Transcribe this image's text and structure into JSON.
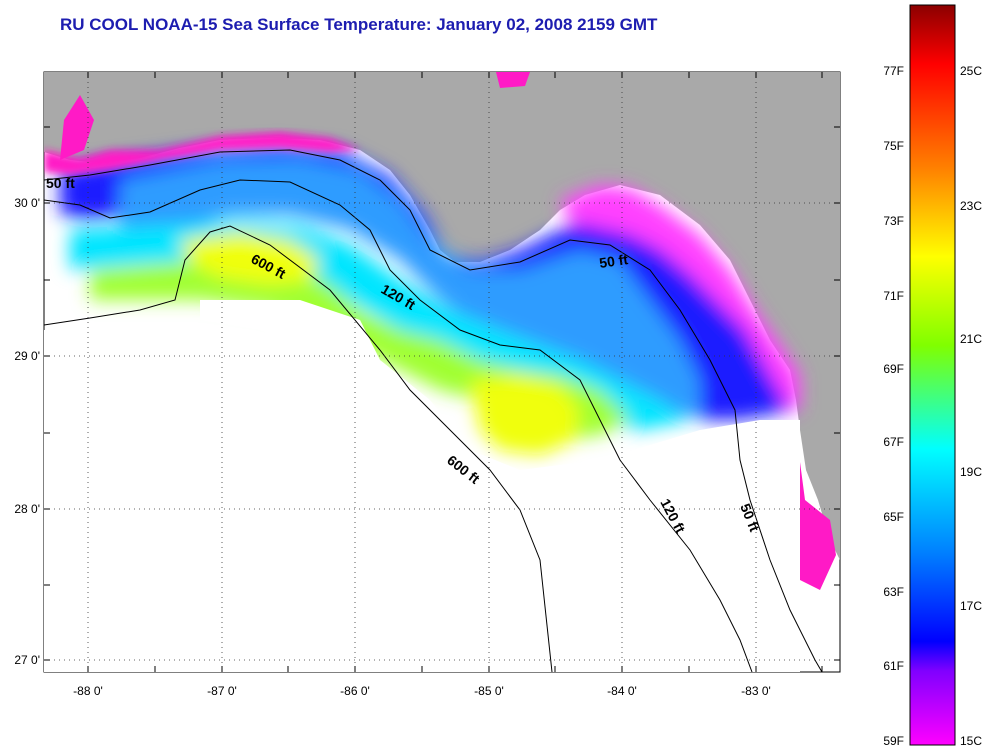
{
  "title": "RU COOL  NOAA-15  Sea Surface Temperature:  January 02, 2008 2159 GMT",
  "map": {
    "x_ticks": [
      "-88 0'",
      "-87 0'",
      "-86 0'",
      "-85 0'",
      "-84 0'",
      "-83 0'"
    ],
    "y_ticks": [
      "30 0'",
      "29 0'",
      "28 0'",
      "27 0'"
    ],
    "contour_labels": [
      "600 ft",
      "120 ft",
      "50 ft",
      "50 ft",
      "600 ft",
      "120 ft",
      "50 ft"
    ]
  },
  "colorbar": {
    "f_labels": [
      "77F",
      "75F",
      "73F",
      "71F",
      "69F",
      "67F",
      "65F",
      "63F",
      "61F",
      "59F"
    ],
    "c_labels": [
      "25C",
      "23C",
      "21C",
      "19C",
      "17C",
      "15C"
    ],
    "colors": [
      "#8b0000",
      "#ff0000",
      "#ff8000",
      "#ffff00",
      "#80ff00",
      "#00ffff",
      "#0080ff",
      "#0000ff",
      "#8000ff",
      "#ff00ff"
    ]
  },
  "colors": {
    "land": "#a9a9a9",
    "title": "#1d1db0",
    "cloud": "#ffffff"
  }
}
